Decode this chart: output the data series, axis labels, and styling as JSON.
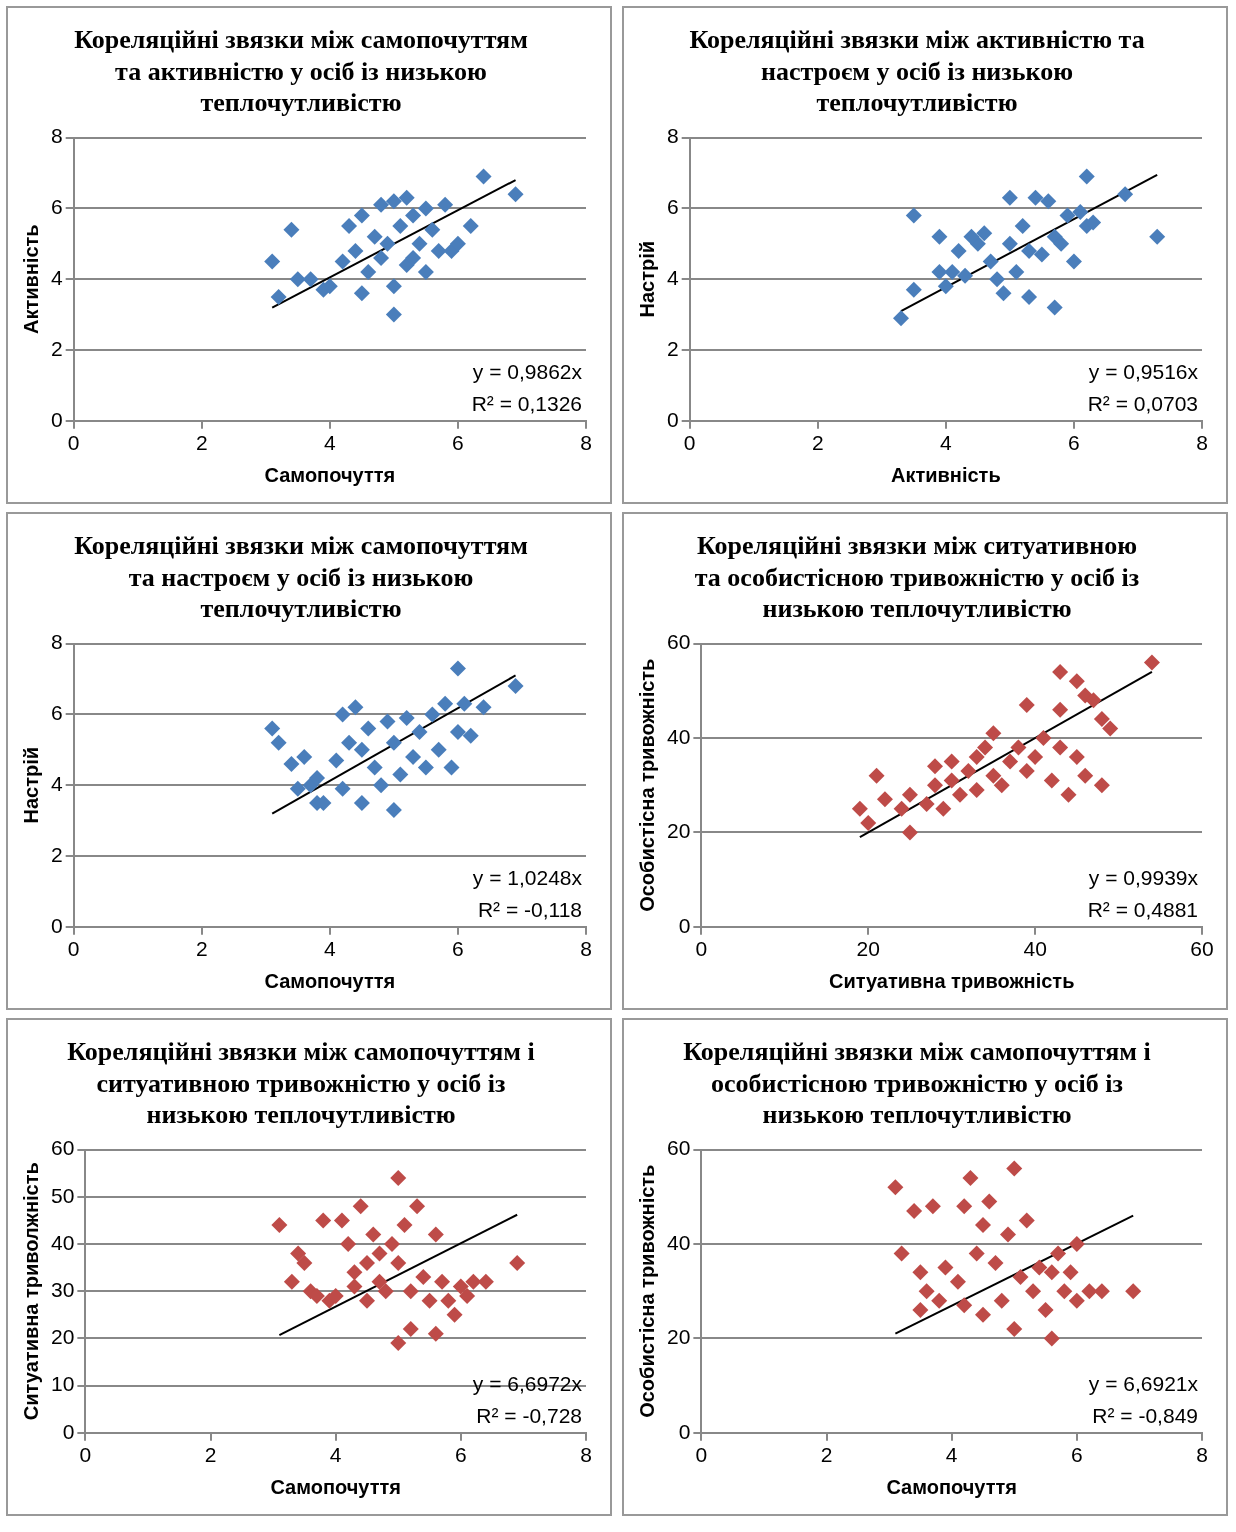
{
  "chart_data": [
    {
      "type": "scatter",
      "title": "Кореляційні звязки між самопочуттям та активністю у осіб із низькою теплочутливістю",
      "xlabel": "Самопочуття",
      "ylabel": "Активність",
      "xlim": [
        0,
        8
      ],
      "xticks": [
        0,
        2,
        4,
        6,
        8
      ],
      "ylim": [
        0,
        8
      ],
      "yticks": [
        0,
        2,
        4,
        6,
        8
      ],
      "grid": "y",
      "marker": "diamond",
      "series": [
        {
          "color": "#4a7ebb",
          "x": [
            3.1,
            3.2,
            3.4,
            3.5,
            3.7,
            3.9,
            4.0,
            4.2,
            4.3,
            4.4,
            4.5,
            4.5,
            4.6,
            4.7,
            4.8,
            4.9,
            5.0,
            5.0,
            5.0,
            5.1,
            5.2,
            5.2,
            5.3,
            5.4,
            5.5,
            5.5,
            5.6,
            5.8,
            5.9,
            6.0,
            6.2,
            6.4,
            6.9,
            4.8,
            5.3,
            5.7
          ],
          "values": [
            4.5,
            3.5,
            5.4,
            4.0,
            4.0,
            3.7,
            3.8,
            4.5,
            5.5,
            4.8,
            5.8,
            3.6,
            4.2,
            5.2,
            4.6,
            5.0,
            6.2,
            3.0,
            3.8,
            5.5,
            6.3,
            4.4,
            5.8,
            5.0,
            6.0,
            4.2,
            5.4,
            6.1,
            4.8,
            5.0,
            5.5,
            6.9,
            6.4,
            6.1,
            4.6,
            4.8
          ]
        },
        {
          "type": "line",
          "color": "#000000",
          "marker": "none",
          "x": [
            3.1,
            6.9
          ],
          "values": [
            3.2,
            6.8
          ]
        }
      ],
      "annotations": [
        "y = 0,9862x",
        "R² = 0,1326"
      ]
    },
    {
      "type": "scatter",
      "title": "Кореляційні звязки між активністю та настроєм у осіб із низькою теплочутливістю",
      "xlabel": "Активність",
      "ylabel": "Настрій",
      "xlim": [
        0,
        8
      ],
      "xticks": [
        0,
        2,
        4,
        6,
        8
      ],
      "ylim": [
        0,
        8
      ],
      "yticks": [
        0,
        2,
        4,
        6,
        8
      ],
      "grid": "y",
      "marker": "diamond",
      "series": [
        {
          "color": "#4a7ebb",
          "x": [
            3.3,
            3.5,
            3.5,
            3.9,
            3.9,
            4.0,
            4.1,
            4.2,
            4.3,
            4.5,
            4.6,
            4.7,
            4.8,
            4.9,
            5.0,
            5.0,
            5.1,
            5.2,
            5.3,
            5.4,
            5.5,
            5.6,
            5.7,
            5.7,
            5.8,
            5.9,
            6.0,
            6.1,
            6.2,
            6.2,
            6.3,
            6.8,
            7.3,
            4.4,
            5.3
          ],
          "values": [
            2.9,
            3.7,
            5.8,
            4.2,
            5.2,
            3.8,
            4.2,
            4.8,
            4.1,
            5.0,
            5.3,
            4.5,
            4.0,
            3.6,
            6.3,
            5.0,
            4.2,
            5.5,
            3.5,
            6.3,
            4.7,
            6.2,
            3.2,
            5.2,
            5.0,
            5.8,
            4.5,
            5.9,
            6.9,
            5.5,
            5.6,
            6.4,
            5.2,
            5.2,
            4.8
          ]
        },
        {
          "type": "line",
          "color": "#000000",
          "marker": "none",
          "x": [
            3.3,
            7.3
          ],
          "values": [
            3.1,
            6.95
          ]
        }
      ],
      "annotations": [
        "y = 0,9516x",
        "R² = 0,0703"
      ]
    },
    {
      "type": "scatter",
      "title": "Кореляційні звязки між самопочуттям та настроєм у осіб із низькою теплочутливістю",
      "xlabel": "Самопочуття",
      "ylabel": "Настрій",
      "xlim": [
        0,
        8
      ],
      "xticks": [
        0,
        2,
        4,
        6,
        8
      ],
      "ylim": [
        0,
        8
      ],
      "yticks": [
        0,
        2,
        4,
        6,
        8
      ],
      "grid": "y",
      "marker": "diamond",
      "series": [
        {
          "color": "#4a7ebb",
          "x": [
            3.1,
            3.2,
            3.4,
            3.5,
            3.6,
            3.7,
            3.8,
            3.8,
            3.9,
            4.1,
            4.2,
            4.2,
            4.3,
            4.4,
            4.5,
            4.5,
            4.6,
            4.7,
            4.8,
            4.9,
            5.0,
            5.0,
            5.1,
            5.2,
            5.3,
            5.4,
            5.5,
            5.6,
            5.7,
            5.8,
            5.9,
            6.0,
            6.0,
            6.1,
            6.2,
            6.4,
            6.9
          ],
          "values": [
            5.6,
            5.2,
            4.6,
            3.9,
            4.8,
            4.0,
            4.2,
            3.5,
            3.5,
            4.7,
            6.0,
            3.9,
            5.2,
            6.2,
            3.5,
            5.0,
            5.6,
            4.5,
            4.0,
            5.8,
            3.3,
            5.2,
            4.3,
            5.9,
            4.8,
            5.5,
            4.5,
            6.0,
            5.0,
            6.3,
            4.5,
            7.3,
            5.5,
            6.3,
            5.4,
            6.2,
            6.8
          ]
        },
        {
          "type": "line",
          "color": "#000000",
          "marker": "none",
          "x": [
            3.1,
            6.9
          ],
          "values": [
            3.2,
            7.1
          ]
        }
      ],
      "annotations": [
        "y = 1,0248x",
        "R² = -0,118"
      ]
    },
    {
      "type": "scatter",
      "title": "Кореляційні звязки між ситуативною та особистісною тривожністю у осіб із низькою теплочутливістю",
      "xlabel": "Ситуативна тривожність",
      "ylabel": "Особистісна тривожність",
      "xlim": [
        0,
        60
      ],
      "xticks": [
        0,
        20,
        40,
        60
      ],
      "ylim": [
        0,
        60
      ],
      "yticks": [
        0,
        20,
        40,
        60
      ],
      "grid": "y",
      "marker": "diamond",
      "series": [
        {
          "color": "#be4b48",
          "x": [
            19,
            20,
            21,
            22,
            24,
            25,
            25,
            27,
            28,
            28,
            29,
            30,
            30,
            31,
            32,
            33,
            33,
            34,
            35,
            35,
            36,
            37,
            38,
            39,
            39,
            40,
            41,
            42,
            43,
            43,
            43,
            44,
            45,
            45,
            46,
            46,
            47,
            48,
            48,
            49,
            54
          ],
          "values": [
            25,
            22,
            32,
            27,
            25,
            20,
            28,
            26,
            30,
            34,
            25,
            31,
            35,
            28,
            33,
            36,
            29,
            38,
            32,
            41,
            30,
            35,
            38,
            33,
            47,
            36,
            40,
            31,
            46,
            38,
            54,
            28,
            52,
            36,
            32,
            49,
            48,
            44,
            30,
            42,
            56
          ]
        },
        {
          "type": "line",
          "color": "#000000",
          "marker": "none",
          "x": [
            19,
            54
          ],
          "values": [
            19,
            54
          ]
        }
      ],
      "annotations": [
        "y = 0,9939x",
        "R² = 0,4881"
      ]
    },
    {
      "type": "scatter",
      "title": "Кореляційні звязки між самопочуттям і ситуативною тривожністю у осіб із низькою теплочутливістю",
      "xlabel": "Самопочуття",
      "ylabel": "Ситуативна триволжність",
      "xlim": [
        0,
        8
      ],
      "xticks": [
        0,
        2,
        4,
        6,
        8
      ],
      "ylim": [
        0,
        60
      ],
      "yticks": [
        0,
        10,
        20,
        30,
        40,
        50,
        60
      ],
      "grid": "y",
      "marker": "diamond",
      "series": [
        {
          "color": "#be4b48",
          "x": [
            3.1,
            3.3,
            3.4,
            3.5,
            3.6,
            3.7,
            3.8,
            3.9,
            4.0,
            4.1,
            4.2,
            4.3,
            4.4,
            4.5,
            4.5,
            4.6,
            4.7,
            4.8,
            4.9,
            5.0,
            5.0,
            5.0,
            5.1,
            5.2,
            5.2,
            5.3,
            5.4,
            5.5,
            5.6,
            5.6,
            5.7,
            5.8,
            5.9,
            6.0,
            6.1,
            6.2,
            6.4,
            6.9,
            4.7,
            4.3
          ],
          "values": [
            44,
            32,
            38,
            36,
            30,
            29,
            45,
            28,
            29,
            45,
            40,
            34,
            48,
            36,
            28,
            42,
            32,
            30,
            40,
            54,
            19,
            36,
            44,
            22,
            30,
            48,
            33,
            28,
            21,
            42,
            32,
            28,
            25,
            31,
            29,
            32,
            32,
            36,
            38,
            31
          ]
        },
        {
          "type": "line",
          "color": "#000000",
          "marker": "none",
          "x": [
            3.1,
            6.9
          ],
          "values": [
            20.7,
            46.2
          ]
        }
      ],
      "annotations": [
        "y = 6,6972x",
        "R² = -0,728"
      ]
    },
    {
      "type": "scatter",
      "title": "Кореляційні звязки між самопочуттям і особистісною тривожністю у осіб із низькою теплочутливістю",
      "xlabel": "Самопочуття",
      "ylabel": "Особистісна тривожність",
      "xlim": [
        0,
        8
      ],
      "xticks": [
        0,
        2,
        4,
        6,
        8
      ],
      "ylim": [
        0,
        60
      ],
      "yticks": [
        0,
        20,
        40,
        60
      ],
      "grid": "y",
      "marker": "diamond",
      "series": [
        {
          "color": "#be4b48",
          "x": [
            3.1,
            3.2,
            3.4,
            3.5,
            3.5,
            3.6,
            3.7,
            3.8,
            3.9,
            4.1,
            4.2,
            4.2,
            4.3,
            4.4,
            4.5,
            4.5,
            4.6,
            4.7,
            4.8,
            4.9,
            5.0,
            5.0,
            5.1,
            5.2,
            5.3,
            5.4,
            5.5,
            5.6,
            5.6,
            5.7,
            5.8,
            5.9,
            6.0,
            6.0,
            6.2,
            6.4,
            6.9
          ],
          "values": [
            52,
            38,
            47,
            34,
            26,
            30,
            48,
            28,
            35,
            32,
            48,
            27,
            54,
            38,
            44,
            25,
            49,
            36,
            28,
            42,
            56,
            22,
            33,
            45,
            30,
            35,
            26,
            20,
            34,
            38,
            30,
            34,
            40,
            28,
            30,
            30,
            30
          ]
        },
        {
          "type": "line",
          "color": "#000000",
          "marker": "none",
          "x": [
            3.1,
            6.9
          ],
          "values": [
            21,
            46
          ]
        }
      ],
      "annotations": [
        "y = 6,6921x",
        "R² = -0,849"
      ]
    }
  ]
}
